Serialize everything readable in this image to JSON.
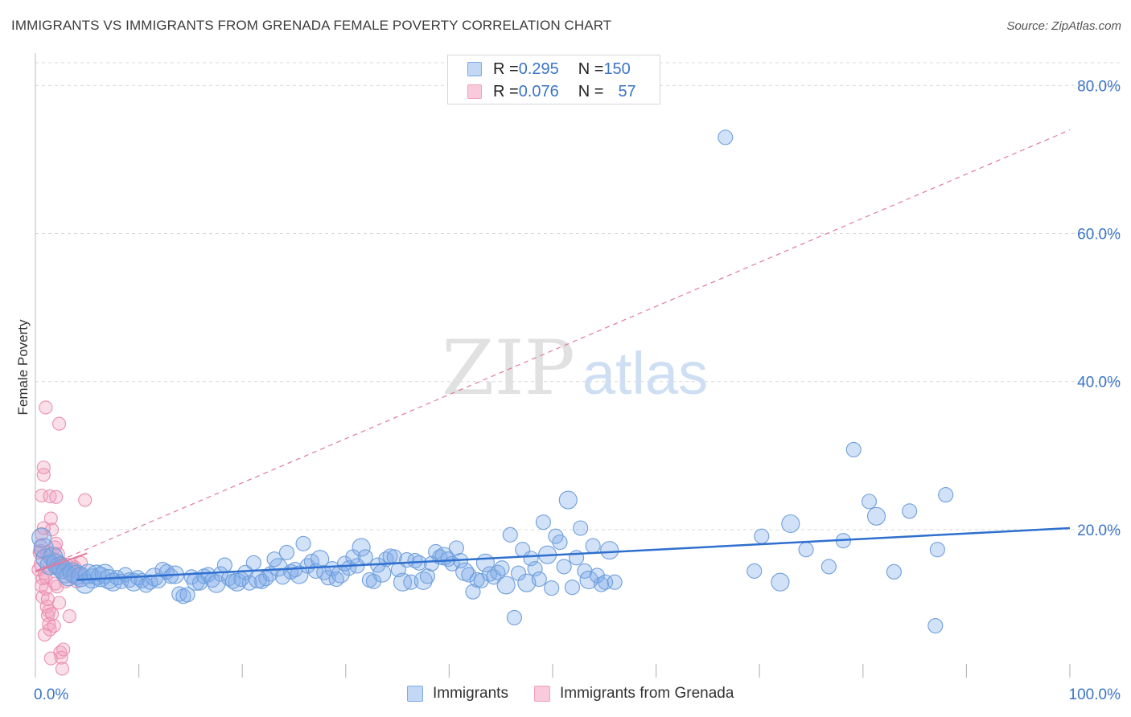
{
  "title": "IMMIGRANTS VS IMMIGRANTS FROM GRENADA FEMALE POVERTY CORRELATION CHART",
  "source": "Source: ZipAtlas.com",
  "watermark": {
    "zip": "ZIP",
    "atlas": "atlas"
  },
  "legend": {
    "rows": [
      {
        "r_label": "R = ",
        "r_value": "0.295",
        "n_label": "N = ",
        "n_value": "150",
        "color": "#7aaae8"
      },
      {
        "r_label": "R = ",
        "r_value": "0.076",
        "n_label": "N = ",
        "n_value": "57",
        "color": "#f0a0bc"
      }
    ]
  },
  "bottom_legend": [
    {
      "label": "Immigrants",
      "color": "#7aaae8"
    },
    {
      "label": "Immigrants from Grenada",
      "color": "#f0a0bc"
    }
  ],
  "chart_data": {
    "type": "scatter",
    "title": "IMMIGRANTS VS IMMIGRANTS FROM GRENADA FEMALE POVERTY CORRELATION CHART",
    "xlabel": "",
    "ylabel": "Female Poverty",
    "xlim": [
      0,
      100
    ],
    "ylim": [
      0,
      82
    ],
    "x_tick_labels": [
      {
        "value": 0,
        "label": "0.0%"
      },
      {
        "value": 100,
        "label": "100.0%"
      }
    ],
    "y_tick_labels": [
      {
        "value": 20,
        "label": "20.0%"
      },
      {
        "value": 40,
        "label": "40.0%"
      },
      {
        "value": 60,
        "label": "60.0%"
      },
      {
        "value": 80,
        "label": "80.0%"
      }
    ],
    "grid": true,
    "series": [
      {
        "name": "Immigrants",
        "color": "#7aaae8",
        "trend": {
          "x": [
            4,
            100
          ],
          "y": [
            13.2,
            20.2
          ],
          "style": "solid",
          "color": "#2f6fce"
        },
        "points": [
          [
            0.6,
            18.9
          ],
          [
            0.8,
            17.5
          ],
          [
            1.0,
            16.1
          ],
          [
            1.4,
            15.2
          ],
          [
            1.7,
            16.3
          ],
          [
            2.0,
            15.4
          ],
          [
            2.3,
            15.0
          ],
          [
            2.6,
            14.7
          ],
          [
            2.9,
            14.1
          ],
          [
            3.2,
            13.7
          ],
          [
            3.6,
            14.2
          ],
          [
            4.0,
            13.9
          ],
          [
            4.4,
            13.6
          ],
          [
            4.8,
            12.7
          ],
          [
            5.1,
            14.0
          ],
          [
            5.5,
            13.4
          ],
          [
            5.9,
            13.9
          ],
          [
            6.3,
            13.6
          ],
          [
            6.7,
            14.0
          ],
          [
            7.1,
            13.3
          ],
          [
            7.5,
            12.9
          ],
          [
            7.9,
            13.5
          ],
          [
            8.3,
            13.0
          ],
          [
            8.7,
            13.9
          ],
          [
            9.1,
            13.2
          ],
          [
            9.5,
            12.9
          ],
          [
            9.9,
            13.5
          ],
          [
            10.3,
            13.1
          ],
          [
            10.7,
            12.5
          ],
          [
            11.1,
            12.9
          ],
          [
            11.5,
            13.6
          ],
          [
            11.9,
            13.1
          ],
          [
            12.3,
            14.6
          ],
          [
            12.7,
            14.3
          ],
          [
            13.1,
            13.7
          ],
          [
            13.5,
            13.9
          ],
          [
            13.9,
            11.3
          ],
          [
            14.3,
            11.0
          ],
          [
            14.7,
            11.2
          ],
          [
            15.1,
            13.6
          ],
          [
            15.5,
            13.0
          ],
          [
            15.9,
            12.8
          ],
          [
            16.3,
            13.7
          ],
          [
            16.7,
            13.9
          ],
          [
            17.1,
            13.2
          ],
          [
            17.5,
            12.7
          ],
          [
            17.9,
            14.0
          ],
          [
            18.3,
            15.2
          ],
          [
            18.7,
            13.4
          ],
          [
            19.1,
            13.0
          ],
          [
            19.5,
            12.9
          ],
          [
            19.9,
            13.3
          ],
          [
            20.3,
            14.2
          ],
          [
            20.7,
            12.8
          ],
          [
            21.1,
            15.5
          ],
          [
            21.5,
            13.3
          ],
          [
            21.9,
            13.0
          ],
          [
            22.3,
            13.4
          ],
          [
            22.7,
            14.0
          ],
          [
            23.1,
            16.0
          ],
          [
            23.5,
            14.9
          ],
          [
            23.9,
            13.6
          ],
          [
            24.3,
            16.9
          ],
          [
            24.7,
            14.3
          ],
          [
            25.1,
            14.6
          ],
          [
            25.5,
            13.9
          ],
          [
            25.9,
            18.1
          ],
          [
            26.3,
            15.1
          ],
          [
            26.7,
            15.7
          ],
          [
            27.1,
            14.4
          ],
          [
            27.5,
            16.0
          ],
          [
            27.9,
            14.2
          ],
          [
            28.3,
            13.5
          ],
          [
            28.7,
            14.7
          ],
          [
            29.1,
            13.3
          ],
          [
            29.5,
            14.0
          ],
          [
            29.9,
            15.4
          ],
          [
            30.3,
            14.8
          ],
          [
            30.7,
            16.3
          ],
          [
            31.1,
            15.1
          ],
          [
            31.5,
            17.6
          ],
          [
            31.9,
            16.3
          ],
          [
            32.3,
            13.2
          ],
          [
            32.7,
            13.0
          ],
          [
            33.1,
            15.2
          ],
          [
            33.5,
            14.1
          ],
          [
            33.9,
            16.0
          ],
          [
            34.3,
            16.4
          ],
          [
            34.7,
            16.3
          ],
          [
            35.1,
            14.6
          ],
          [
            35.5,
            12.9
          ],
          [
            35.9,
            15.9
          ],
          [
            36.3,
            12.9
          ],
          [
            36.7,
            15.8
          ],
          [
            37.1,
            15.5
          ],
          [
            37.5,
            13.1
          ],
          [
            37.9,
            13.7
          ],
          [
            38.3,
            15.4
          ],
          [
            38.7,
            17.0
          ],
          [
            39.1,
            16.3
          ],
          [
            39.5,
            16.4
          ],
          [
            39.9,
            16.0
          ],
          [
            40.3,
            15.4
          ],
          [
            40.7,
            17.5
          ],
          [
            41.1,
            15.8
          ],
          [
            41.5,
            14.3
          ],
          [
            41.9,
            13.9
          ],
          [
            42.3,
            11.6
          ],
          [
            42.7,
            13.2
          ],
          [
            43.1,
            13.1
          ],
          [
            43.5,
            15.5
          ],
          [
            43.9,
            14.0
          ],
          [
            44.3,
            13.6
          ],
          [
            44.7,
            14.2
          ],
          [
            45.1,
            14.8
          ],
          [
            45.5,
            12.5
          ],
          [
            45.9,
            19.3
          ],
          [
            46.3,
            8.1
          ],
          [
            46.7,
            14.1
          ],
          [
            47.1,
            17.3
          ],
          [
            47.5,
            12.8
          ],
          [
            47.9,
            16.1
          ],
          [
            48.3,
            14.7
          ],
          [
            48.7,
            13.3
          ],
          [
            49.1,
            21.0
          ],
          [
            49.5,
            16.6
          ],
          [
            49.9,
            12.1
          ],
          [
            50.3,
            19.1
          ],
          [
            50.7,
            18.3
          ],
          [
            51.1,
            15.0
          ],
          [
            51.5,
            24.0
          ],
          [
            51.9,
            12.2
          ],
          [
            52.3,
            16.2
          ],
          [
            52.7,
            20.2
          ],
          [
            53.1,
            14.4
          ],
          [
            53.5,
            13.2
          ],
          [
            53.9,
            17.8
          ],
          [
            54.3,
            13.8
          ],
          [
            54.7,
            12.6
          ],
          [
            55.1,
            12.9
          ],
          [
            55.5,
            17.2
          ],
          [
            56.0,
            12.9
          ],
          [
            66.7,
            73.0
          ],
          [
            69.5,
            14.4
          ],
          [
            70.2,
            19.1
          ],
          [
            72.0,
            12.9
          ],
          [
            74.5,
            17.3
          ],
          [
            76.7,
            15.0
          ],
          [
            79.1,
            30.8
          ],
          [
            80.6,
            23.8
          ],
          [
            81.3,
            21.8
          ],
          [
            83.0,
            14.3
          ],
          [
            84.5,
            22.5
          ],
          [
            87.2,
            17.3
          ],
          [
            88.0,
            24.7
          ],
          [
            73.0,
            20.8
          ],
          [
            78.1,
            18.5
          ],
          [
            87.0,
            7.0
          ]
        ]
      },
      {
        "name": "Immigrants from Grenada",
        "color": "#f0a0bc",
        "trend": {
          "x": [
            0,
            100
          ],
          "y": [
            14.4,
            74.0
          ],
          "style": "dashed",
          "color": "#e07a9c"
        },
        "trend_solid_segment": {
          "x": [
            0,
            5
          ],
          "y": [
            14.3,
            16.8
          ]
        },
        "points": [
          [
            0.3,
            14.6
          ],
          [
            0.4,
            16.9
          ],
          [
            0.5,
            15.3
          ],
          [
            0.5,
            17.8
          ],
          [
            0.6,
            19.4
          ],
          [
            0.6,
            24.6
          ],
          [
            0.7,
            13.4
          ],
          [
            0.7,
            10.9
          ],
          [
            0.8,
            27.4
          ],
          [
            0.8,
            28.4
          ],
          [
            0.9,
            14.1
          ],
          [
            1.0,
            12.0
          ],
          [
            1.1,
            16.9
          ],
          [
            1.1,
            9.6
          ],
          [
            1.2,
            8.4
          ],
          [
            1.3,
            7.2
          ],
          [
            1.4,
            6.5
          ],
          [
            1.5,
            21.5
          ],
          [
            1.6,
            20.0
          ],
          [
            1.7,
            16.1
          ],
          [
            1.8,
            15.5
          ],
          [
            1.9,
            17.6
          ],
          [
            2.0,
            18.1
          ],
          [
            2.1,
            12.3
          ],
          [
            2.2,
            14.8
          ],
          [
            2.3,
            10.1
          ],
          [
            2.4,
            3.4
          ],
          [
            2.5,
            2.7
          ],
          [
            2.6,
            1.2
          ],
          [
            1.0,
            36.5
          ],
          [
            2.3,
            34.3
          ],
          [
            1.4,
            24.5
          ],
          [
            2.0,
            24.4
          ],
          [
            4.8,
            24.0
          ],
          [
            4.0,
            13.0
          ],
          [
            3.5,
            15.2
          ],
          [
            1.0,
            13.5
          ],
          [
            1.3,
            9.0
          ],
          [
            1.8,
            7.0
          ],
          [
            2.7,
            3.8
          ],
          [
            3.0,
            15.3
          ],
          [
            3.8,
            14.9
          ],
          [
            4.4,
            15.5
          ],
          [
            0.9,
            5.8
          ],
          [
            1.5,
            2.6
          ],
          [
            2.2,
            16.7
          ],
          [
            2.5,
            15.5
          ],
          [
            3.1,
            14.5
          ],
          [
            0.6,
            12.4
          ],
          [
            0.5,
            17.1
          ],
          [
            1.2,
            10.6
          ],
          [
            1.6,
            8.6
          ],
          [
            3.3,
            8.3
          ],
          [
            2.9,
            13.0
          ],
          [
            4.2,
            14.1
          ],
          [
            0.8,
            20.2
          ],
          [
            1.9,
            12.7
          ]
        ]
      }
    ]
  }
}
